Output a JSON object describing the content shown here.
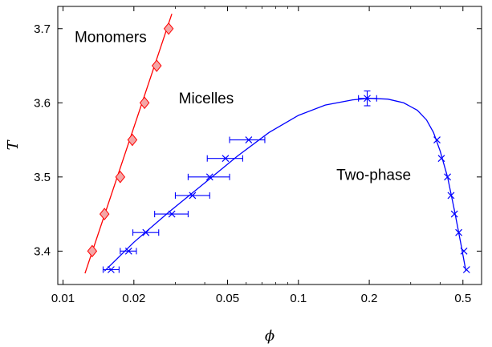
{
  "chart_data": {
    "type": "scatter",
    "x_scale": "log",
    "xlim": [
      0.0095,
      0.6
    ],
    "ylim": [
      3.355,
      3.73
    ],
    "xlabel": "ϕ",
    "ylabel": "T",
    "grid": false,
    "x_ticks": [
      {
        "value": 0.01,
        "label": "0.01"
      },
      {
        "value": 0.02,
        "label": "0.02"
      },
      {
        "value": 0.05,
        "label": "0.05"
      },
      {
        "value": 0.1,
        "label": "0.1"
      },
      {
        "value": 0.2,
        "label": "0.2"
      },
      {
        "value": 0.5,
        "label": "0.5"
      }
    ],
    "y_ticks": [
      {
        "value": 3.4,
        "label": "3.4"
      },
      {
        "value": 3.5,
        "label": "3.5"
      },
      {
        "value": 3.6,
        "label": "3.6"
      },
      {
        "value": 3.7,
        "label": "3.7"
      }
    ],
    "annotations": [
      {
        "text": "Monomers",
        "x": 0.0112,
        "y": 3.682
      },
      {
        "text": "Micelles",
        "x": 0.031,
        "y": 3.599
      },
      {
        "text": "Two-phase",
        "x": 0.145,
        "y": 3.496
      }
    ],
    "series": [
      {
        "marker": "diamond",
        "color": "#ff0000",
        "fill": "#f4a6a6",
        "points": [
          {
            "x": 0.0133,
            "y": 3.4
          },
          {
            "x": 0.015,
            "y": 3.45
          },
          {
            "x": 0.0175,
            "y": 3.5
          },
          {
            "x": 0.0197,
            "y": 3.55
          },
          {
            "x": 0.0222,
            "y": 3.6
          },
          {
            "x": 0.025,
            "y": 3.65
          },
          {
            "x": 0.0281,
            "y": 3.7
          }
        ],
        "fit_line": [
          {
            "x": 0.0124,
            "y": 3.37
          },
          {
            "x": 0.029,
            "y": 3.72
          }
        ]
      },
      {
        "marker": "x",
        "color": "#0000ff",
        "points": [
          {
            "x": 0.016,
            "y": 3.375,
            "xerr": [
              0.0148,
              0.0173
            ]
          },
          {
            "x": 0.019,
            "y": 3.4,
            "xerr": [
              0.0175,
              0.0205
            ]
          },
          {
            "x": 0.0225,
            "y": 3.425,
            "xerr": [
              0.0198,
              0.0255
            ]
          },
          {
            "x": 0.029,
            "y": 3.45,
            "xerr": [
              0.0245,
              0.034
            ]
          },
          {
            "x": 0.0355,
            "y": 3.475,
            "xerr": [
              0.03,
              0.042
            ]
          },
          {
            "x": 0.042,
            "y": 3.5,
            "xerr": [
              0.034,
              0.051
            ]
          },
          {
            "x": 0.049,
            "y": 3.525,
            "xerr": [
              0.041,
              0.058
            ]
          },
          {
            "x": 0.0615,
            "y": 3.55,
            "xerr": [
              0.051,
              0.072
            ]
          },
          {
            "x": 0.196,
            "y": 3.606,
            "xerr": [
              0.18,
              0.215
            ],
            "yerr": [
              3.596,
              3.616
            ]
          },
          {
            "x": 0.388,
            "y": 3.55
          },
          {
            "x": 0.405,
            "y": 3.525
          },
          {
            "x": 0.43,
            "y": 3.5
          },
          {
            "x": 0.445,
            "y": 3.475
          },
          {
            "x": 0.46,
            "y": 3.45
          },
          {
            "x": 0.48,
            "y": 3.425
          },
          {
            "x": 0.505,
            "y": 3.4
          },
          {
            "x": 0.518,
            "y": 3.375
          }
        ],
        "fit_curve": [
          {
            "x": 0.015,
            "y": 3.373
          },
          {
            "x": 0.02,
            "y": 3.412
          },
          {
            "x": 0.028,
            "y": 3.452
          },
          {
            "x": 0.04,
            "y": 3.492
          },
          {
            "x": 0.055,
            "y": 3.528
          },
          {
            "x": 0.075,
            "y": 3.56
          },
          {
            "x": 0.1,
            "y": 3.583
          },
          {
            "x": 0.13,
            "y": 3.597
          },
          {
            "x": 0.17,
            "y": 3.604
          },
          {
            "x": 0.2,
            "y": 3.606
          },
          {
            "x": 0.24,
            "y": 3.605
          },
          {
            "x": 0.28,
            "y": 3.6
          },
          {
            "x": 0.32,
            "y": 3.59
          },
          {
            "x": 0.35,
            "y": 3.577
          },
          {
            "x": 0.375,
            "y": 3.56
          },
          {
            "x": 0.4,
            "y": 3.535
          },
          {
            "x": 0.43,
            "y": 3.5
          },
          {
            "x": 0.46,
            "y": 3.455
          },
          {
            "x": 0.49,
            "y": 3.41
          },
          {
            "x": 0.515,
            "y": 3.373
          }
        ]
      }
    ]
  }
}
